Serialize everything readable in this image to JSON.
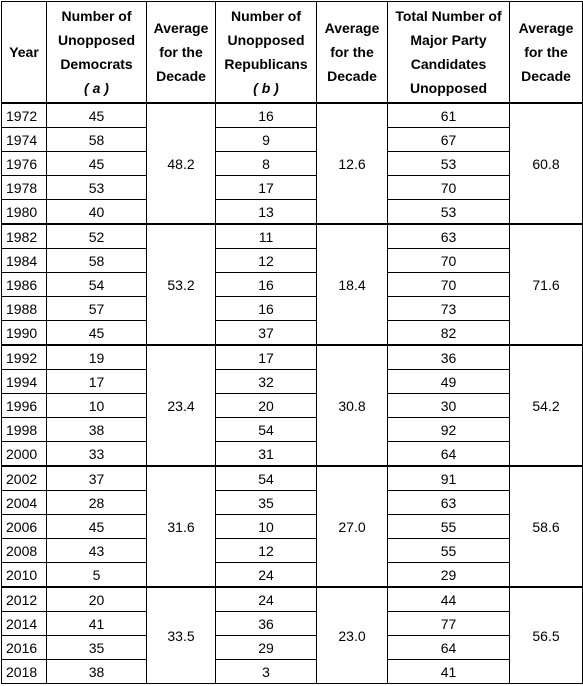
{
  "header": {
    "year": "Year",
    "dem": {
      "label": "Number of Unopposed Democrats",
      "symbol": "( a )"
    },
    "dem_avg": "Average for the Decade",
    "rep": {
      "label": "Number of Unopposed Republicans",
      "symbol": "( b )"
    },
    "rep_avg": "Average for the Decade",
    "total": "Total Number of Major Party Candidates Unopposed",
    "total_avg": "Average for the Decade"
  },
  "groups": [
    {
      "rows": [
        [
          "1972",
          "45",
          "16",
          "61"
        ],
        [
          "1974",
          "58",
          "9",
          "67"
        ],
        [
          "1976",
          "45",
          "8",
          "53"
        ],
        [
          "1978",
          "53",
          "17",
          "70"
        ],
        [
          "1980",
          "40",
          "13",
          "53"
        ]
      ],
      "dem_avg": "48.2",
      "rep_avg": "12.6",
      "total_avg": "60.8"
    },
    {
      "rows": [
        [
          "1982",
          "52",
          "11",
          "63"
        ],
        [
          "1984",
          "58",
          "12",
          "70"
        ],
        [
          "1986",
          "54",
          "16",
          "70"
        ],
        [
          "1988",
          "57",
          "16",
          "73"
        ],
        [
          "1990",
          "45",
          "37",
          "82"
        ]
      ],
      "dem_avg": "53.2",
      "rep_avg": "18.4",
      "total_avg": "71.6"
    },
    {
      "rows": [
        [
          "1992",
          "19",
          "17",
          "36"
        ],
        [
          "1994",
          "17",
          "32",
          "49"
        ],
        [
          "1996",
          "10",
          "20",
          "30"
        ],
        [
          "1998",
          "38",
          "54",
          "92"
        ],
        [
          "2000",
          "33",
          "31",
          "64"
        ]
      ],
      "dem_avg": "23.4",
      "rep_avg": "30.8",
      "total_avg": "54.2"
    },
    {
      "rows": [
        [
          "2002",
          "37",
          "54",
          "91"
        ],
        [
          "2004",
          "28",
          "35",
          "63"
        ],
        [
          "2006",
          "45",
          "10",
          "55"
        ],
        [
          "2008",
          "43",
          "12",
          "55"
        ],
        [
          "2010",
          "5",
          "24",
          "29"
        ]
      ],
      "dem_avg": "31.6",
      "rep_avg": "27.0",
      "total_avg": "58.6"
    },
    {
      "rows": [
        [
          "2012",
          "20",
          "24",
          "44"
        ],
        [
          "2014",
          "41",
          "36",
          "77"
        ],
        [
          "2016",
          "35",
          "29",
          "64"
        ],
        [
          "2018",
          "38",
          "3",
          "41"
        ]
      ],
      "dem_avg": "33.5",
      "rep_avg": "23.0",
      "total_avg": "56.5"
    }
  ]
}
